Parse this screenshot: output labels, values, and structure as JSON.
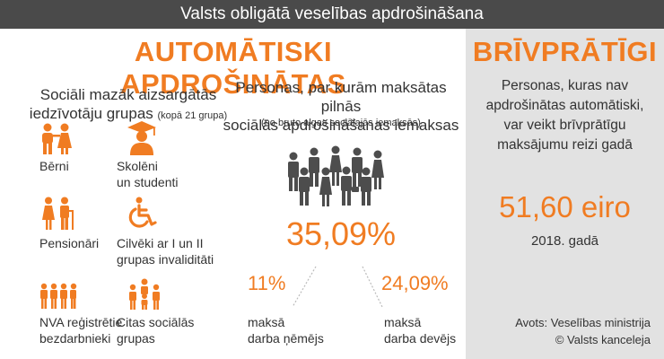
{
  "title": "Valsts obligātā veselības apdrošināšana",
  "left": {
    "heading": "AUTOMĀTISKI APDROŠINĀTAS",
    "groups_title_line1": "Sociāli mazāk aizsargātās",
    "groups_title_line2": "iedzīvotāju grupas",
    "groups_count": "(kopā 21 grupa)",
    "groups": [
      {
        "label": "Bērni",
        "icon": "children-icon"
      },
      {
        "label": "Skolēni un studenti",
        "line1": "Skolēni",
        "line2": "un studenti",
        "icon": "graduate-icon"
      },
      {
        "label": "Pensionāri",
        "icon": "pensioners-icon"
      },
      {
        "label": "Cilvēki ar I un II grupas invaliditāti",
        "line1": "Cilvēki ar I un II",
        "line2": "grupas invaliditāti",
        "icon": "wheelchair-icon"
      },
      {
        "label": "NVA reģistrētie bezdarbnieki",
        "line1": "NVA reģistrētie",
        "line2": "bezdarbnieki",
        "icon": "unemployed-icon"
      },
      {
        "label": "Citas sociālās grupas",
        "line1": "Citas sociālās",
        "line2": "grupas",
        "icon": "social-groups-icon"
      }
    ],
    "payers_title_line1": "Personas, par kurām maksātas pilnās",
    "payers_title_line2": "sociālās apdrošināšanas iemaksas",
    "payers_note": "(no bruto algas sociālajās iemaksās)",
    "total_rate": "35,09%",
    "employee_rate": "11%",
    "employer_rate": "24,09%",
    "employee_label_line1": "maksā",
    "employee_label_line2": "darba ņēmējs",
    "employer_label_line1": "maksā",
    "employer_label_line2": "darba devējs"
  },
  "right": {
    "heading": "BRĪVPRĀTĪGI",
    "text_line1": "Personas, kuras nav",
    "text_line2": "apdrošinātas automātiski,",
    "text_line3": "var veikt brīvprātīgu",
    "text_line4": "maksājumu reizi gadā",
    "amount": "51,60 eiro",
    "year": "2018. gadā",
    "source": "Avots: Veselības ministrija",
    "copyright": "© Valsts kanceleja"
  },
  "colors": {
    "accent": "#f07c22",
    "dark": "#4a4a4a",
    "panel": "#e2e2e2",
    "icon_gray": "#4d4d4d"
  }
}
